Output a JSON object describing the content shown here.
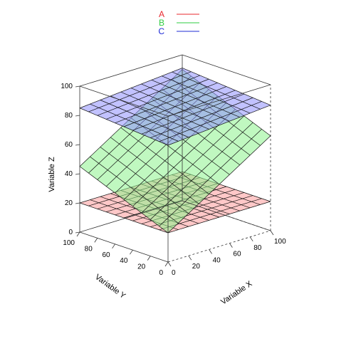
{
  "chart_data": {
    "type": "surface3d",
    "title": "",
    "xlabel": "Variable X",
    "ylabel": "Variable Y",
    "zlabel": "Variable Z",
    "xlim": [
      0,
      100
    ],
    "ylim": [
      0,
      100
    ],
    "zlim": [
      0,
      100
    ],
    "x_ticks": [
      "0",
      "20",
      "40",
      "60",
      "80",
      "100"
    ],
    "y_ticks": [
      "0",
      "20",
      "40",
      "60",
      "80",
      "100"
    ],
    "z_ticks": [
      "0",
      "20",
      "40",
      "60",
      "80",
      "100"
    ],
    "grid": false,
    "legend_position": "top-center",
    "mesh_divisions": 10,
    "series": [
      {
        "name": "A",
        "color": "#e8282e",
        "fill": "#ff9a9a",
        "plane": {
          "z_at_origin": 20,
          "dz_per_x": 0,
          "dz_per_y": 0
        }
      },
      {
        "name": "B",
        "color": "#2ecc40",
        "fill": "#8cf28c",
        "plane": {
          "z_at_origin": 20,
          "dz_per_x": 0.45,
          "dz_per_y": 0.25
        }
      },
      {
        "name": "C",
        "color": "#1f2bd6",
        "fill": "#8f8fff",
        "plane": {
          "z_at_origin": 80,
          "dz_per_x": 0.06,
          "dz_per_y": 0.05
        }
      }
    ]
  }
}
